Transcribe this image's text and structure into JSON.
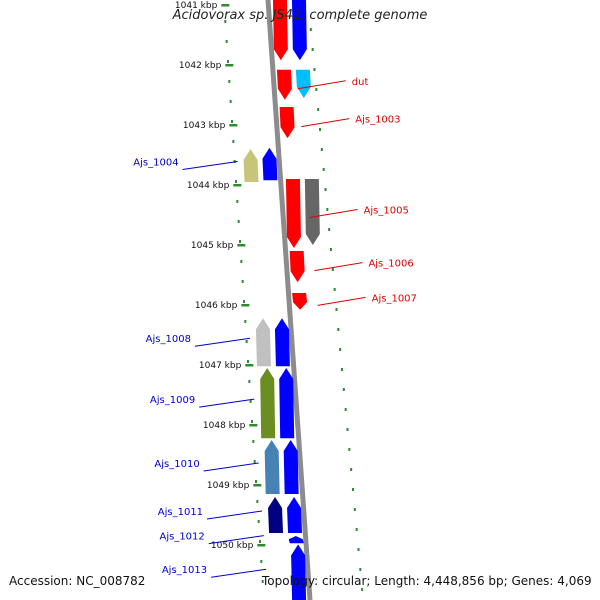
{
  "title": "Acidovorax sp. JS42, complete genome",
  "footer": {
    "accession": "Accession: NC_008782",
    "summary": "Topology: circular; Length: 4,448,856 bp; Genes: 4,069"
  },
  "colors": {
    "backbone": "#8c8c8c",
    "tick": "#2e8b2e",
    "red": "#ff0000",
    "blue": "#0000ff",
    "cyan": "#00bfff",
    "gray": "#666666",
    "khaki": "#c8c47a",
    "lightgray": "#c0c0c0",
    "olive": "#6b8e23",
    "steel": "#4682b4",
    "navy": "#000080",
    "label_forward": "#0000cc",
    "label_reverse": "#e00000"
  },
  "ticks": [
    "1041 kbp",
    "1042 kbp",
    "1043 kbp",
    "1044 kbp",
    "1045 kbp",
    "1046 kbp",
    "1047 kbp",
    "1048 kbp",
    "1049 kbp",
    "1050 kbp"
  ],
  "genes": [
    {
      "name": "",
      "strand": "reverse",
      "lane": 0,
      "start": 1040.8,
      "end": 1041.92,
      "color": "red"
    },
    {
      "name": "",
      "strand": "reverse",
      "lane": 1,
      "start": 1040.8,
      "end": 1041.92,
      "color": "blue"
    },
    {
      "name": "dut",
      "strand": "reverse",
      "lane": 0,
      "start": 1042.08,
      "end": 1042.58,
      "color": "red"
    },
    {
      "name": "",
      "strand": "reverse",
      "lane": 1,
      "start": 1042.08,
      "end": 1042.55,
      "color": "cyan"
    },
    {
      "name": "Ajs_1003",
      "strand": "reverse",
      "lane": 0,
      "start": 1042.7,
      "end": 1043.22,
      "color": "red"
    },
    {
      "name": "Ajs_1004",
      "strand": "forward",
      "lane": 1,
      "start": 1043.4,
      "end": 1043.95,
      "color": "khaki"
    },
    {
      "name": "",
      "strand": "forward",
      "lane": 0,
      "start": 1043.38,
      "end": 1043.92,
      "color": "blue"
    },
    {
      "name": "Ajs_1005",
      "strand": "reverse",
      "lane": 0,
      "start": 1043.9,
      "end": 1045.05,
      "color": "red"
    },
    {
      "name": "",
      "strand": "reverse",
      "lane": 1,
      "start": 1043.9,
      "end": 1045.0,
      "color": "gray"
    },
    {
      "name": "Ajs_1006",
      "strand": "reverse",
      "lane": 0,
      "start": 1045.1,
      "end": 1045.62,
      "color": "red"
    },
    {
      "name": "Ajs_1007",
      "strand": "reverse",
      "lane": 0,
      "start": 1045.8,
      "end": 1046.08,
      "color": "red"
    },
    {
      "name": "Ajs_1008",
      "strand": "forward",
      "lane": 1,
      "start": 1046.22,
      "end": 1047.02,
      "color": "lightgray"
    },
    {
      "name": "",
      "strand": "forward",
      "lane": 0,
      "start": 1046.22,
      "end": 1047.02,
      "color": "blue"
    },
    {
      "name": "Ajs_1009",
      "strand": "forward",
      "lane": 1,
      "start": 1047.05,
      "end": 1048.22,
      "color": "olive"
    },
    {
      "name": "",
      "strand": "forward",
      "lane": 0,
      "start": 1047.05,
      "end": 1048.22,
      "color": "blue"
    },
    {
      "name": "Ajs_1010",
      "strand": "forward",
      "lane": 1,
      "start": 1048.25,
      "end": 1049.15,
      "color": "steel"
    },
    {
      "name": "",
      "strand": "forward",
      "lane": 0,
      "start": 1048.25,
      "end": 1049.15,
      "color": "blue"
    },
    {
      "name": "Ajs_1011",
      "strand": "forward",
      "lane": 1,
      "start": 1049.2,
      "end": 1049.8,
      "color": "navy"
    },
    {
      "name": "",
      "strand": "forward",
      "lane": 0,
      "start": 1049.2,
      "end": 1049.8,
      "color": "blue"
    },
    {
      "name": "Ajs_1012",
      "strand": "forward",
      "lane": 0,
      "start": 1049.85,
      "end": 1049.97,
      "color": "blue"
    },
    {
      "name": "Ajs_1013",
      "strand": "forward",
      "lane": 0,
      "start": 1049.99,
      "end": 1050.95,
      "color": "blue"
    }
  ]
}
